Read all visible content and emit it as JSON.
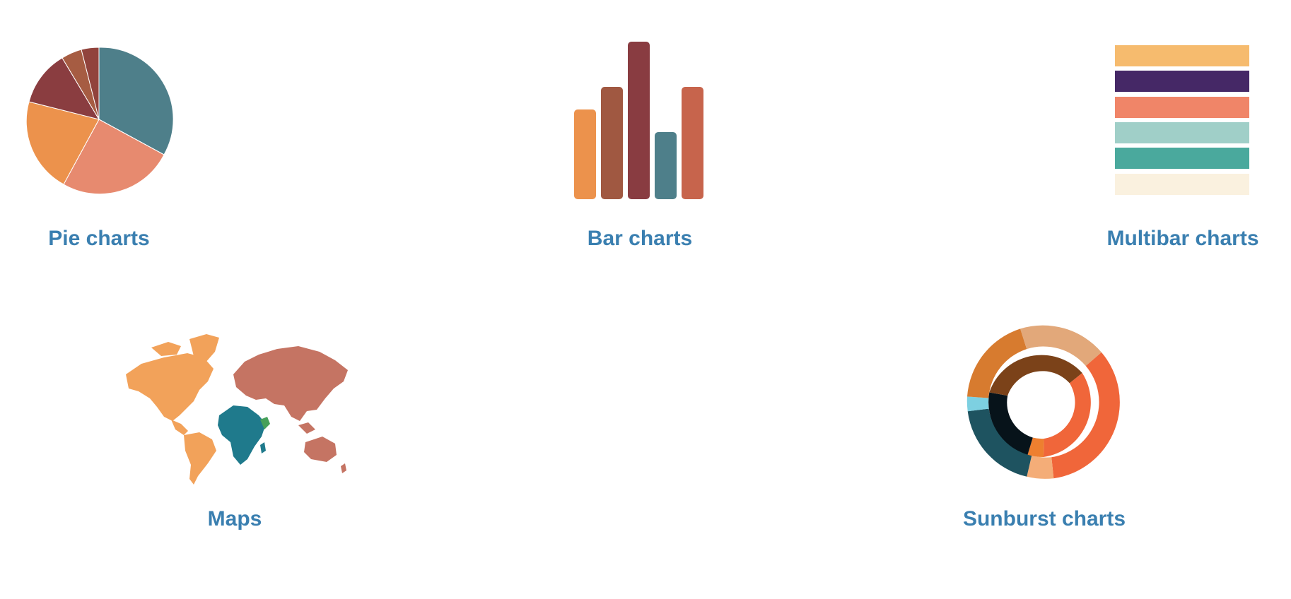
{
  "gallery": {
    "tiles": [
      {
        "id": "pie",
        "label": "Pie charts",
        "icon": "pie-chart-icon",
        "colors": [
          "#4e7f8a",
          "#e78a6f",
          "#ec924c",
          "#8a3d40",
          "#a65c42",
          "#91433c"
        ]
      },
      {
        "id": "bar",
        "label": "Bar charts",
        "icon": "bar-chart-icon",
        "colors": [
          "#ec924c",
          "#a05841",
          "#893c41",
          "#4e7f8a",
          "#c7644c"
        ]
      },
      {
        "id": "multibar",
        "label": "Multibar charts",
        "icon": "multibar-chart-icon",
        "colors": [
          "#f6bb6e",
          "#452866",
          "#f08568",
          "#a0cfc8",
          "#4aa99d",
          "#faf1df"
        ]
      },
      {
        "id": "maps",
        "label": "Maps",
        "icon": "world-map-icon",
        "colors": [
          "#f2a25a",
          "#c57463",
          "#1f7a8c",
          "#46a05a"
        ]
      },
      {
        "id": "sunburst",
        "label": "Sunburst charts",
        "icon": "sunburst-chart-icon",
        "colors": [
          "#d77b2f",
          "#7b4219",
          "#e2a87a",
          "#f0663a",
          "#07131a",
          "#1e5360",
          "#7dd0e1"
        ]
      }
    ]
  }
}
